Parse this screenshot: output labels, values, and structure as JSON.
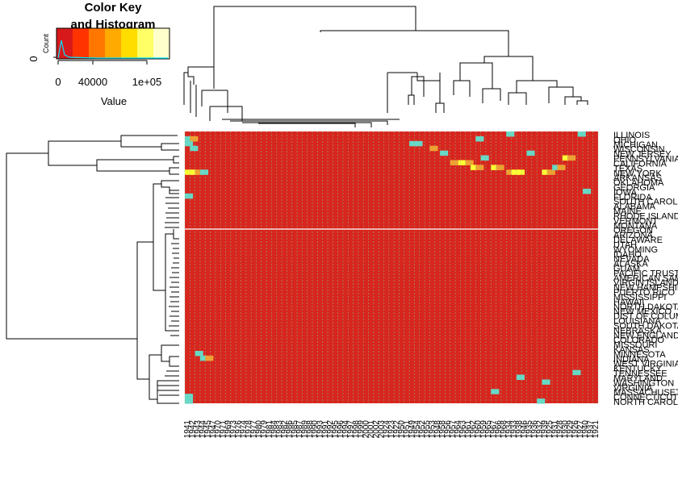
{
  "chart_data": {
    "type": "heatmap",
    "title": "",
    "color_key": {
      "title_line1": "Color Key",
      "title_line2": "and Histogram",
      "xlabel": "Value",
      "ylabel": "Count",
      "xticks": [
        "0",
        "40000",
        "1e+05"
      ],
      "ytick": "0",
      "range": [
        0,
        130000
      ],
      "colors": [
        "#d7191c",
        "#ff3300",
        "#ff7700",
        "#ffaa00",
        "#ffdd00",
        "#ffff66",
        "#ffffcc"
      ]
    },
    "cell_colors": {
      "base": "#d7261e",
      "separator": "#8fbc8f",
      "cyan": "#66d9c7",
      "mid": "#f0a030",
      "high": "#ffff33"
    },
    "columns": [
      "1941",
      "1942",
      "1943",
      "1944",
      "1945",
      "1947",
      "1970",
      "1971",
      "1969",
      "1973",
      "1976",
      "1974",
      "1978",
      "1977",
      "1980",
      "1979",
      "1981",
      "1984",
      "1983",
      "1982",
      "1986",
      "1985",
      "1987",
      "1989",
      "1988",
      "1990",
      "1993",
      "1991",
      "1992",
      "1995",
      "1996",
      "1994",
      "1997",
      "1998",
      "1999",
      "2000",
      "2001",
      "2002",
      "2003",
      "1924",
      "1923",
      "1922",
      "1950",
      "1951",
      "1949",
      "1954",
      "1952",
      "1955",
      "1953",
      "1948",
      "1958",
      "1956",
      "1957",
      "1964",
      "1963",
      "1961",
      "1962",
      "1960",
      "1959",
      "1965",
      "1967",
      "1966",
      "1968",
      "1934",
      "1933",
      "1938",
      "1946",
      "1935",
      "1936",
      "1932",
      "1939",
      "1925",
      "1931",
      "1928",
      "1930",
      "1929",
      "1926",
      "1927",
      "1940",
      "1937",
      "1921"
    ],
    "rows": [
      "ILLINOIS",
      "OHIO",
      "MICHIGAN",
      "WISCONSIN",
      "NEW JERSEY",
      "PENNSYLVANIA",
      "CALIFORNIA",
      "TEXAS",
      "NEW YORK",
      "ARKANSAS",
      "OKLAHOMA",
      "GEORGIA",
      "IOWA",
      "FLORIDA",
      "SOUTH CAROLINA",
      "ALABAMA",
      "MAINE",
      "RHODE ISLAND",
      "VERMONT",
      "MONTANA",
      "OREGON",
      "ARIZONA",
      "DELAWARE",
      "UTAH",
      "WYOMING",
      "IDAHO",
      "NEVADA",
      "ALASKA",
      "GUAM",
      "PACIFIC TRUST T",
      "AMERICAN SAMOA",
      "VIRGIN ISLANDS",
      "NEW HAMPSHIRE",
      "PUERTO RICO",
      "MISSISSIPPI",
      "HAWAII",
      "NORTH DAKOTA",
      "NEW MEXICO",
      "DIST OF COLUMBIA",
      "LOUISIANA",
      "SOUTH DAKOTA",
      "NEBRASKA",
      "NEW ENGLAND",
      "COLORADO",
      "MISSOURI",
      "KANSAS",
      "MINNESOTA",
      "INDIANA",
      "WEST VIRGINIA",
      "KENTUCKY",
      "TENNESSEE",
      "MARYLAND",
      "WASHINGTON",
      "VIRGINIA",
      "MASSACHUSETTS",
      "CONNECTICUT",
      "NORTH CAROLINA"
    ],
    "hot_cells": [
      {
        "row": 8,
        "col": 0,
        "level": "high"
      },
      {
        "row": 8,
        "col": 1,
        "level": "high"
      },
      {
        "row": 8,
        "col": 2,
        "level": "mid"
      },
      {
        "row": 8,
        "col": 3,
        "level": "cyan"
      },
      {
        "row": 6,
        "col": 53,
        "level": "high"
      },
      {
        "row": 6,
        "col": 54,
        "level": "high"
      },
      {
        "row": 6,
        "col": 55,
        "level": "mid"
      },
      {
        "row": 6,
        "col": 52,
        "level": "mid"
      },
      {
        "row": 7,
        "col": 56,
        "level": "high"
      },
      {
        "row": 7,
        "col": 57,
        "level": "mid"
      },
      {
        "row": 7,
        "col": 60,
        "level": "high"
      },
      {
        "row": 7,
        "col": 61,
        "level": "mid"
      },
      {
        "row": 8,
        "col": 63,
        "level": "mid"
      },
      {
        "row": 8,
        "col": 64,
        "level": "high"
      },
      {
        "row": 8,
        "col": 65,
        "level": "high"
      },
      {
        "row": 8,
        "col": 70,
        "level": "high"
      },
      {
        "row": 8,
        "col": 71,
        "level": "mid"
      },
      {
        "row": 7,
        "col": 72,
        "level": "cyan"
      },
      {
        "row": 7,
        "col": 73,
        "level": "mid"
      },
      {
        "row": 5,
        "col": 74,
        "level": "high"
      },
      {
        "row": 5,
        "col": 75,
        "level": "mid"
      },
      {
        "row": 1,
        "col": 0,
        "level": "cyan"
      },
      {
        "row": 1,
        "col": 1,
        "level": "mid"
      },
      {
        "row": 2,
        "col": 0,
        "level": "cyan"
      },
      {
        "row": 3,
        "col": 1,
        "level": "cyan"
      },
      {
        "row": 2,
        "col": 44,
        "level": "cyan"
      },
      {
        "row": 2,
        "col": 45,
        "level": "cyan"
      },
      {
        "row": 3,
        "col": 48,
        "level": "mid"
      },
      {
        "row": 4,
        "col": 50,
        "level": "cyan"
      },
      {
        "row": 1,
        "col": 57,
        "level": "cyan"
      },
      {
        "row": 0,
        "col": 63,
        "level": "cyan"
      },
      {
        "row": 0,
        "col": 77,
        "level": "cyan"
      },
      {
        "row": 4,
        "col": 67,
        "level": "cyan"
      },
      {
        "row": 5,
        "col": 58,
        "level": "cyan"
      },
      {
        "row": 47,
        "col": 3,
        "level": "cyan"
      },
      {
        "row": 47,
        "col": 4,
        "level": "mid"
      },
      {
        "row": 46,
        "col": 2,
        "level": "cyan"
      },
      {
        "row": 55,
        "col": 0,
        "level": "cyan"
      },
      {
        "row": 56,
        "col": 0,
        "level": "cyan"
      },
      {
        "row": 56,
        "col": 69,
        "level": "cyan"
      },
      {
        "row": 54,
        "col": 60,
        "level": "cyan"
      },
      {
        "row": 52,
        "col": 70,
        "level": "cyan"
      },
      {
        "row": 51,
        "col": 65,
        "level": "cyan"
      },
      {
        "row": 50,
        "col": 76,
        "level": "cyan"
      },
      {
        "row": 12,
        "col": 78,
        "level": "cyan"
      },
      {
        "row": 13,
        "col": 0,
        "level": "cyan"
      }
    ]
  }
}
